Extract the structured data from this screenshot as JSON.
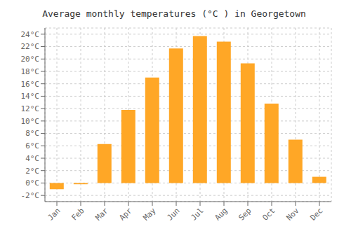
{
  "chart_data": {
    "type": "bar",
    "title": "Average monthly temperatures (°C ) in Georgetown",
    "categories": [
      "Jan",
      "Feb",
      "Mar",
      "Apr",
      "May",
      "Jun",
      "Jul",
      "Aug",
      "Sep",
      "Oct",
      "Nov",
      "Dec"
    ],
    "values": [
      -1.0,
      -0.2,
      6.3,
      11.8,
      17.0,
      21.7,
      23.7,
      22.8,
      19.3,
      12.8,
      7.0,
      1.0
    ],
    "color": "#FFA726",
    "ylim": [
      -3,
      25
    ],
    "yticks": [
      {
        "value": -2,
        "label": "-2°C"
      },
      {
        "value": 0,
        "label": "0°C"
      },
      {
        "value": 2,
        "label": "2°C"
      },
      {
        "value": 4,
        "label": "4°C"
      },
      {
        "value": 6,
        "label": "6°C"
      },
      {
        "value": 8,
        "label": "8°C"
      },
      {
        "value": 10,
        "label": "10°C"
      },
      {
        "value": 12,
        "label": "12°C"
      },
      {
        "value": 14,
        "label": "14°C"
      },
      {
        "value": 16,
        "label": "16°C"
      },
      {
        "value": 18,
        "label": "18°C"
      },
      {
        "value": 20,
        "label": "20°C"
      },
      {
        "value": 22,
        "label": "22°C"
      },
      {
        "value": 24,
        "label": "24°C"
      }
    ],
    "grid": true
  }
}
